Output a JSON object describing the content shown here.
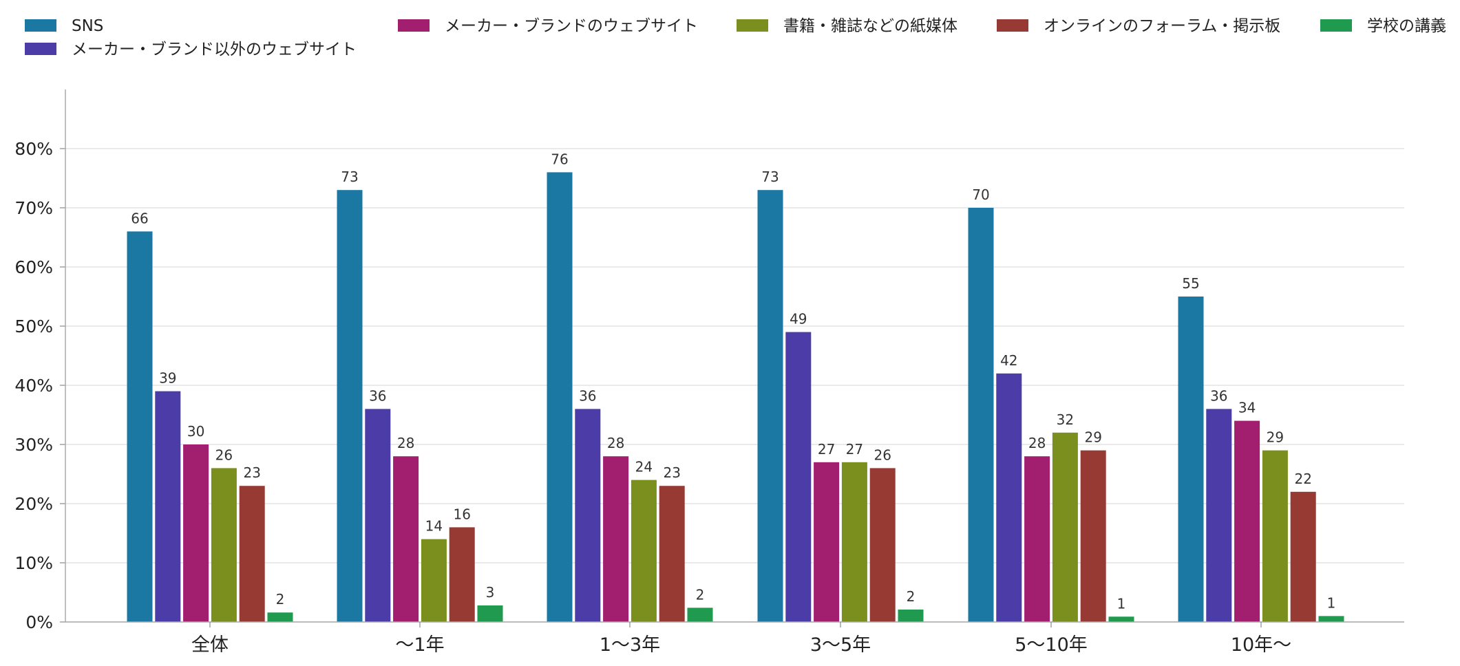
{
  "chart_data": {
    "type": "bar",
    "categories": [
      "全体",
      "〜1年",
      "1〜3年",
      "3〜5年",
      "5〜10年",
      "10年〜"
    ],
    "series": [
      {
        "name": "SNS",
        "color": "#1a78a2",
        "values": [
          66,
          73,
          76,
          73,
          70,
          55
        ],
        "labels": [
          "66",
          "73",
          "76",
          "73",
          "70",
          "55"
        ]
      },
      {
        "name": "メーカー・ブランド以外のウェブサイト",
        "color": "#4b3ca8",
        "values": [
          39,
          36,
          36,
          49,
          42,
          36
        ],
        "labels": [
          "39",
          "36",
          "36",
          "49",
          "42",
          "36"
        ]
      },
      {
        "name": "メーカー・ブランドのウェブサイト",
        "color": "#a11f6e",
        "values": [
          30,
          28,
          28,
          27,
          28,
          34
        ],
        "labels": [
          "30",
          "28",
          "28",
          "27",
          "28",
          "34"
        ]
      },
      {
        "name": "書籍・雑誌などの紙媒体",
        "color": "#7b8f1f",
        "values": [
          26,
          14,
          24,
          27,
          32,
          29
        ],
        "labels": [
          "26",
          "14",
          "24",
          "27",
          "32",
          "29"
        ]
      },
      {
        "name": "オンラインのフォーラム・掲示板",
        "color": "#973a33",
        "values": [
          23,
          16,
          23,
          26,
          29,
          22
        ],
        "labels": [
          "23",
          "16",
          "23",
          "26",
          "29",
          "22"
        ]
      },
      {
        "name": "学校の講義",
        "color": "#1f9a4e",
        "values": [
          1.6,
          2.8,
          2.4,
          2.1,
          0.9,
          1.0
        ],
        "labels": [
          "2",
          "3",
          "2",
          "2",
          "1",
          "1"
        ]
      }
    ],
    "ylim": [
      0,
      90
    ],
    "yticks": [
      0,
      10,
      20,
      30,
      40,
      50,
      60,
      70,
      80
    ],
    "ytick_labels": [
      "0%",
      "10%",
      "20%",
      "30%",
      "40%",
      "50%",
      "60%",
      "70%",
      "80%"
    ],
    "grid": true,
    "legend_position": "top"
  }
}
